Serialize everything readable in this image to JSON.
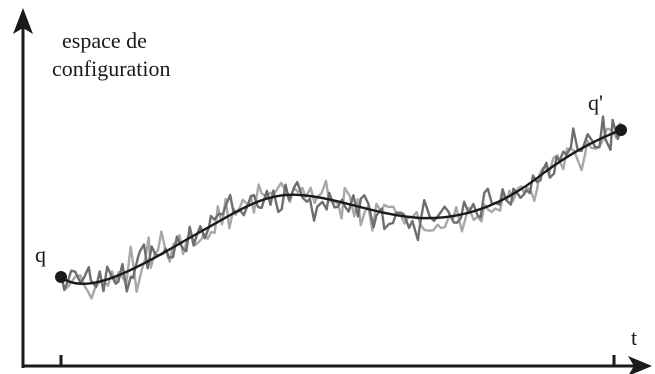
{
  "diagram": {
    "y_axis_label_lines": [
      "espace de",
      "configuration"
    ],
    "x_axis_label": "t",
    "start_label": "q",
    "end_label": "q'",
    "colors": {
      "axes": "#1a1a1a",
      "smooth_path": "#1a1a1a",
      "noisy_path_dark": "#6e6e6e",
      "noisy_path_light": "#a8a8a8",
      "endpoints": "#1a1a1a"
    }
  }
}
